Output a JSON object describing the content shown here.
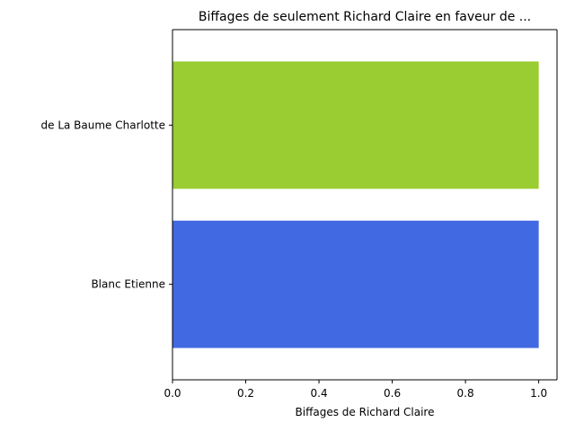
{
  "chart_data": {
    "type": "bar",
    "orientation": "horizontal",
    "title": "Biffages de seulement Richard Claire en faveur de ...",
    "xlabel": "Biffages de Richard Claire",
    "ylabel": "",
    "categories": [
      "de La Baume Charlotte",
      "Blanc Etienne"
    ],
    "values": [
      1,
      1
    ],
    "colors": [
      "#9acd32",
      "#4169e1"
    ],
    "xlim": [
      0,
      1.05
    ],
    "xticks": [
      0.0,
      0.2,
      0.4,
      0.6,
      0.8,
      1.0
    ],
    "xtick_labels": [
      "0.0",
      "0.2",
      "0.4",
      "0.6",
      "0.8",
      "1.0"
    ],
    "grid": false,
    "legend": "none"
  }
}
